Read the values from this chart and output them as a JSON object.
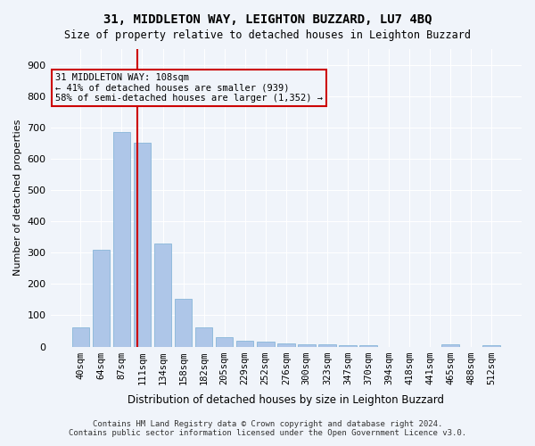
{
  "title": "31, MIDDLETON WAY, LEIGHTON BUZZARD, LU7 4BQ",
  "subtitle": "Size of property relative to detached houses in Leighton Buzzard",
  "xlabel": "Distribution of detached houses by size in Leighton Buzzard",
  "ylabel": "Number of detached properties",
  "bar_values": [
    62,
    310,
    685,
    650,
    328,
    152,
    62,
    30,
    18,
    15,
    10,
    8,
    6,
    5,
    3,
    0,
    0,
    0,
    8,
    0,
    3
  ],
  "bar_labels": [
    "40sqm",
    "64sqm",
    "87sqm",
    "111sqm",
    "134sqm",
    "158sqm",
    "182sqm",
    "205sqm",
    "229sqm",
    "252sqm",
    "276sqm",
    "300sqm",
    "323sqm",
    "347sqm",
    "370sqm",
    "394sqm",
    "418sqm",
    "441sqm",
    "465sqm",
    "488sqm",
    "512sqm"
  ],
  "bar_color": "#aec6e8",
  "bar_edge_color": "#7aafd4",
  "property_line_x": 2.75,
  "property_size": "108sqm",
  "annotation_text": "31 MIDDLETON WAY: 108sqm\n← 41% of detached houses are smaller (939)\n58% of semi-detached houses are larger (1,352) →",
  "annotation_box_color": "#cc0000",
  "vline_color": "#cc0000",
  "background_color": "#f0f4fa",
  "grid_color": "#ffffff",
  "ylim": [
    0,
    950
  ],
  "yticks": [
    0,
    100,
    200,
    300,
    400,
    500,
    600,
    700,
    800,
    900
  ],
  "footer_line1": "Contains HM Land Registry data © Crown copyright and database right 2024.",
  "footer_line2": "Contains public sector information licensed under the Open Government Licence v3.0."
}
